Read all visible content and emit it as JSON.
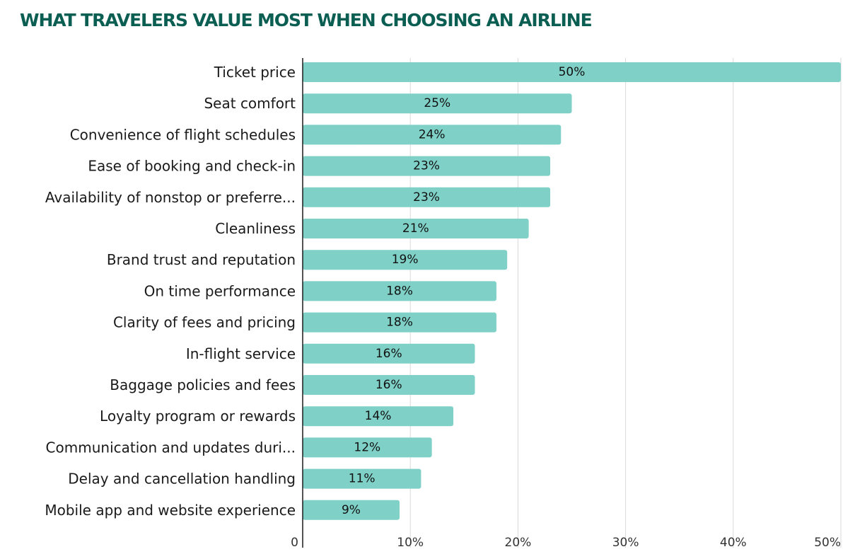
{
  "chart_data": {
    "type": "bar",
    "orientation": "horizontal",
    "title": "WHAT TRAVELERS VALUE MOST WHEN CHOOSING AN AIRLINE",
    "categories": [
      "Ticket price",
      "Seat comfort",
      "Convenience of flight schedules",
      "Ease of booking and check-in",
      "Availability of nonstop or preferre...",
      "Cleanliness",
      "Brand trust and reputation",
      "On time performance",
      "Clarity of fees and pricing",
      "In-flight service",
      "Baggage policies and fees",
      "Loyalty program or rewards",
      "Communication and updates duri...",
      "Delay and cancellation handling",
      "Mobile app and website experience"
    ],
    "values": [
      50,
      25,
      24,
      23,
      23,
      21,
      19,
      18,
      18,
      16,
      16,
      14,
      12,
      11,
      9
    ],
    "value_labels": [
      "50%",
      "25%",
      "24%",
      "23%",
      "23%",
      "21%",
      "19%",
      "18%",
      "18%",
      "16%",
      "16%",
      "14%",
      "12%",
      "11%",
      "9%"
    ],
    "xlim": [
      0,
      50
    ],
    "x_ticks": [
      0,
      10,
      20,
      30,
      40,
      50
    ],
    "x_tick_labels": [
      "0",
      "10%",
      "20%",
      "30%",
      "40%",
      "50%"
    ],
    "grid": true,
    "colors": {
      "bar": "#7fd1c7",
      "title": "#0b5e52",
      "grid": "#d9d9d9",
      "axis": "#1a1a1a"
    }
  }
}
